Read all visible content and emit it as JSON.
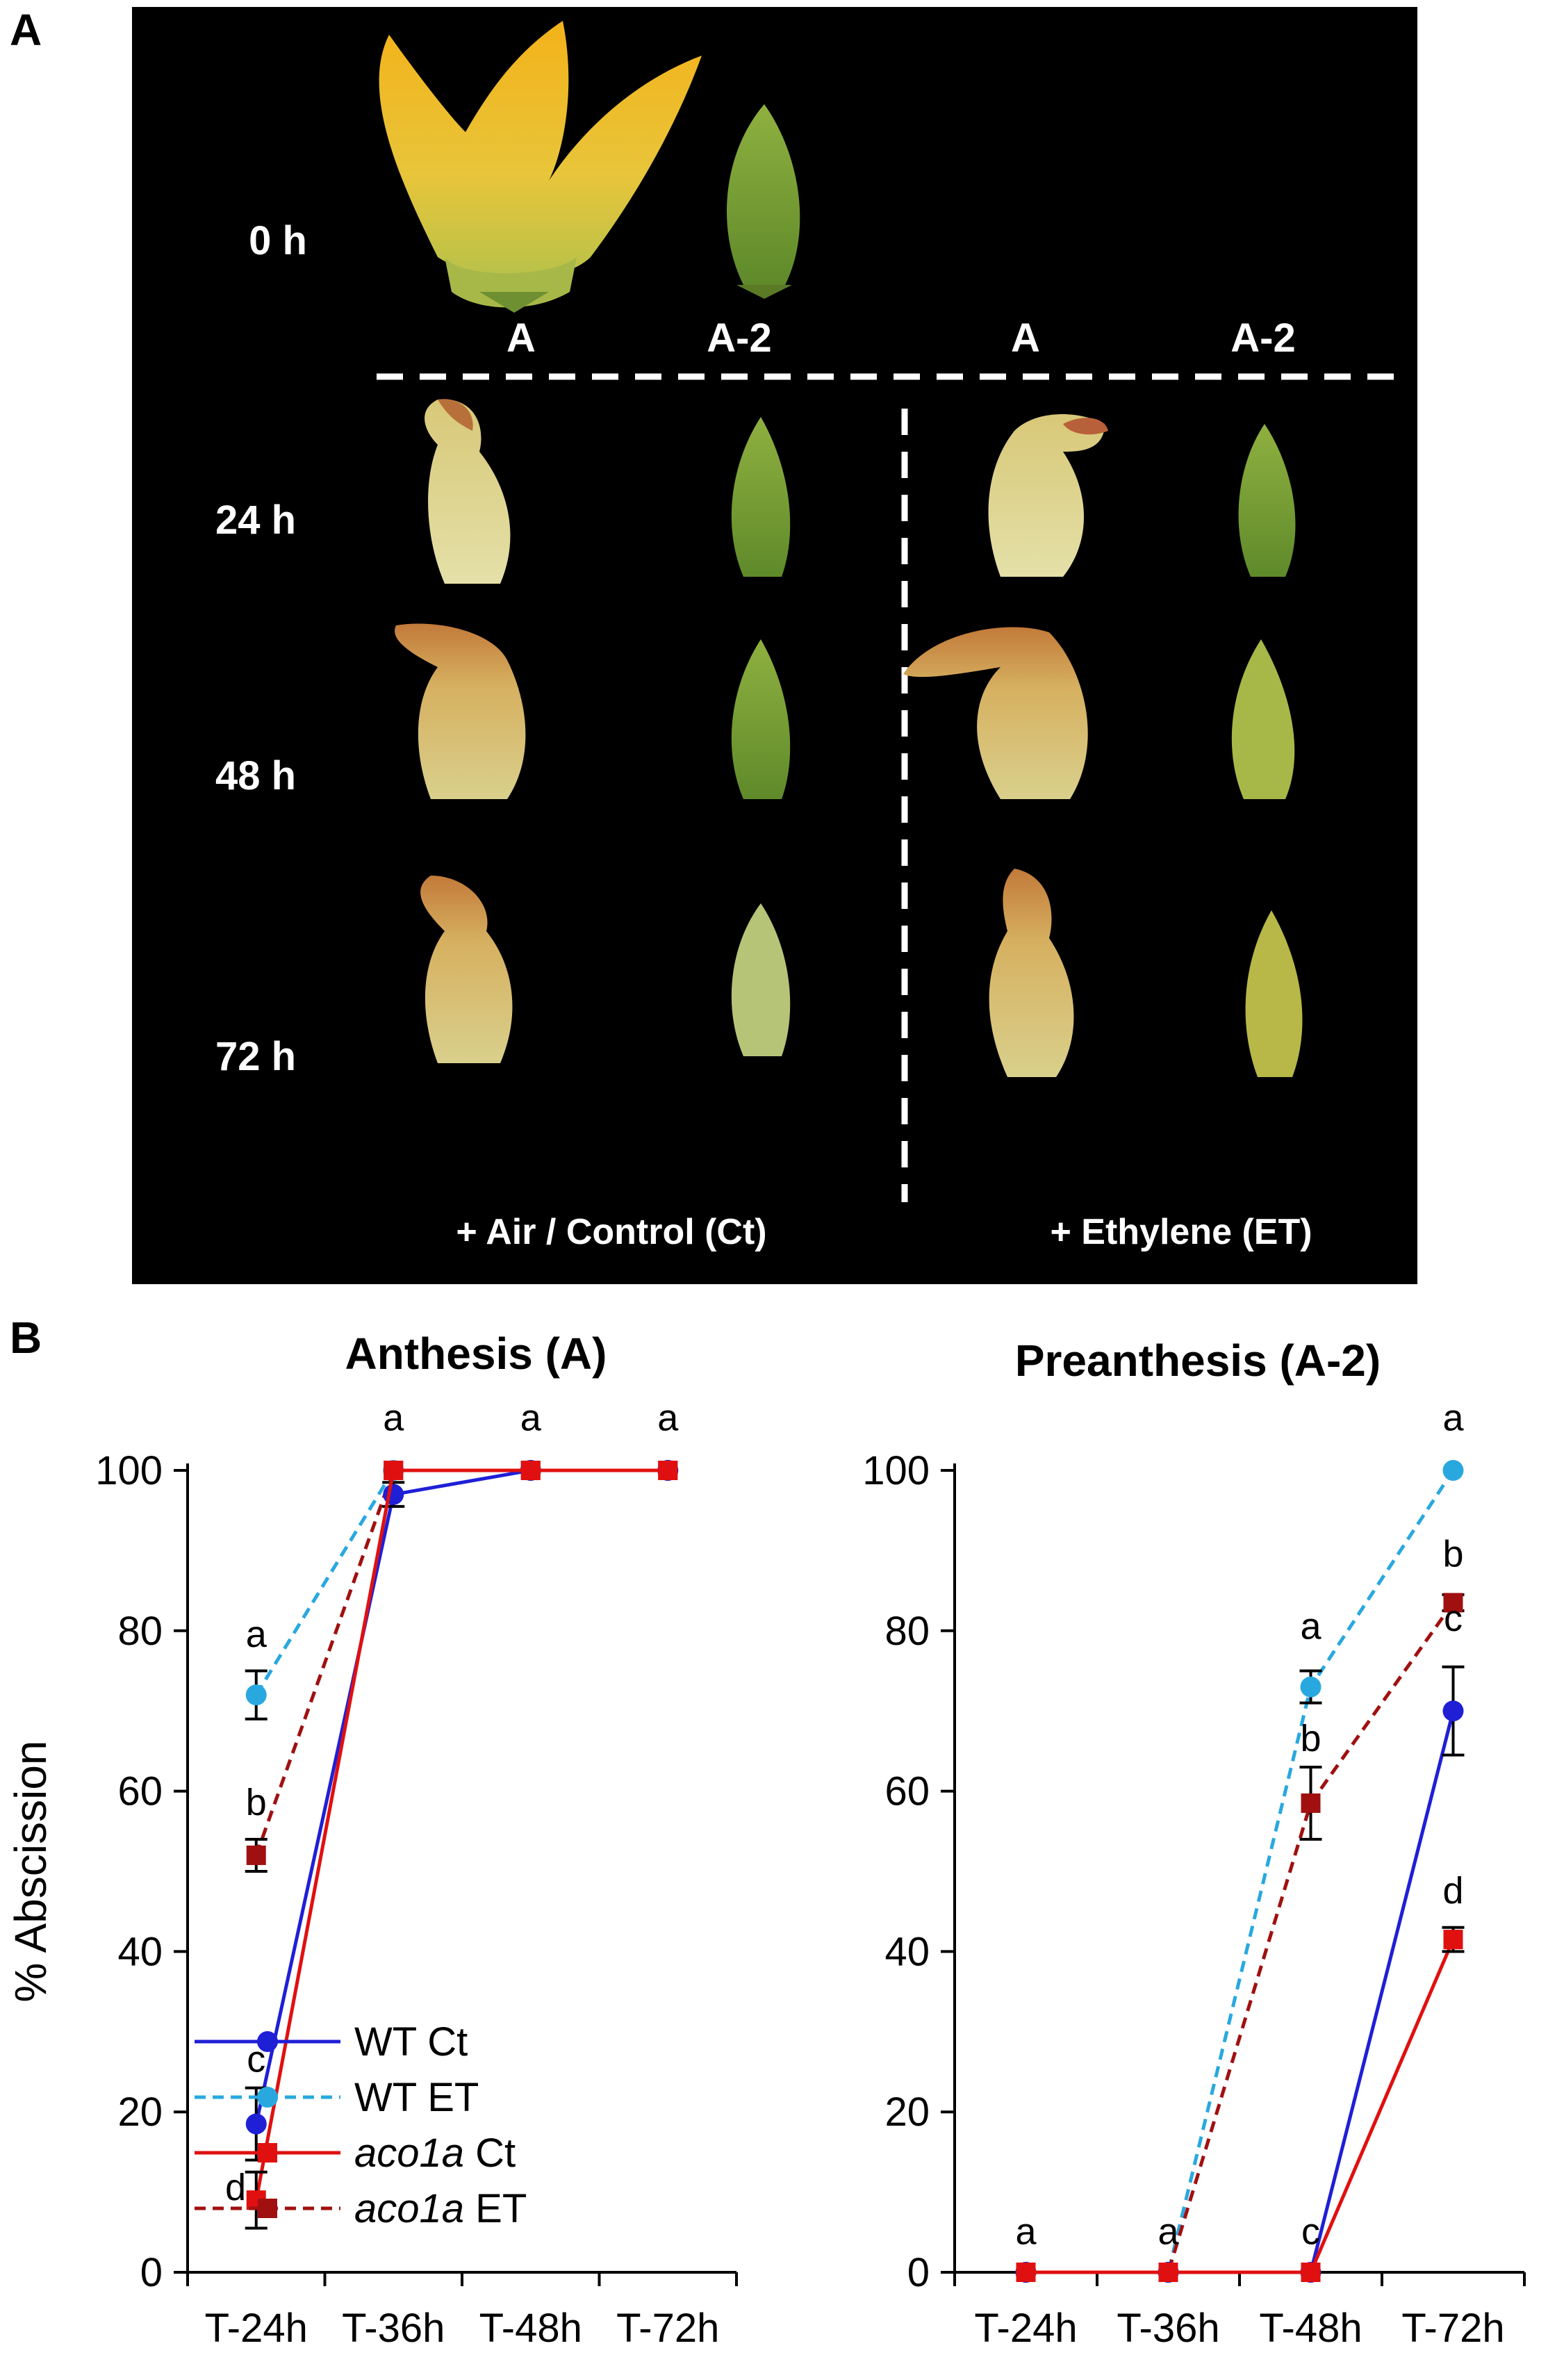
{
  "figure": {
    "panel_a_label": "A",
    "panel_b_label": "B"
  },
  "photo_panel": {
    "row_labels": [
      "0 h",
      "24 h",
      "48 h",
      "72 h"
    ],
    "column_labels_top": [
      "A",
      "A-2"
    ],
    "column_labels_ct": [
      "A",
      "A-2"
    ],
    "column_labels_et": [
      "A",
      "A-2"
    ],
    "treatment_ct": "+ Air / Control (Ct)",
    "treatment_et": "+ Ethylene (ET)"
  },
  "legend": {
    "entries": [
      {
        "name": "WT Ct",
        "italic_part": "",
        "plain_part": "WT Ct",
        "color": "#1f1fd6",
        "dash": false,
        "marker": "circle"
      },
      {
        "name": "WT ET",
        "italic_part": "",
        "plain_part": "WT ET",
        "color": "#29a8e0",
        "dash": true,
        "marker": "circle"
      },
      {
        "name": "aco1a Ct",
        "italic_part": "aco1a",
        "plain_part": " Ct",
        "color": "#e01010",
        "dash": false,
        "marker": "square"
      },
      {
        "name": "aco1a ET",
        "italic_part": "aco1a",
        "plain_part": " ET",
        "color": "#a01010",
        "dash": true,
        "marker": "square"
      }
    ]
  },
  "chart_data": [
    {
      "type": "line",
      "title": "Anthesis (A)",
      "ylabel": "% Abscission",
      "xlabel": "",
      "categories": [
        "T-24h",
        "T-36h",
        "T-48h",
        "T-72h"
      ],
      "ylim": [
        0,
        100
      ],
      "yticks": [
        0,
        20,
        40,
        60,
        80,
        100
      ],
      "series": [
        {
          "name": "WT Ct",
          "values": [
            18.5,
            97,
            100,
            100
          ],
          "errors": [
            4.5,
            1.5,
            0,
            0
          ],
          "color": "#1f1fd6",
          "dash": false,
          "marker": "circle"
        },
        {
          "name": "WT ET",
          "values": [
            72,
            100,
            100,
            100
          ],
          "errors": [
            3,
            0,
            0,
            0
          ],
          "color": "#29a8e0",
          "dash": true,
          "marker": "circle"
        },
        {
          "name": "aco1a Ct",
          "values": [
            9,
            100,
            100,
            100
          ],
          "errors": [
            3.5,
            0,
            0,
            0
          ],
          "color": "#e01010",
          "dash": false,
          "marker": "square"
        },
        {
          "name": "aco1a ET",
          "values": [
            52,
            100,
            100,
            100
          ],
          "errors": [
            2,
            0,
            0,
            0
          ],
          "color": "#a01010",
          "dash": true,
          "marker": "square"
        }
      ],
      "annotations": [
        {
          "text": "a",
          "x": 0,
          "y": 78
        },
        {
          "text": "b",
          "x": 0,
          "y": 57
        },
        {
          "text": "c",
          "x": 0,
          "y": 25
        },
        {
          "text": "d",
          "x": -0.15,
          "y": 9
        },
        {
          "text": "a",
          "x": 1,
          "y": 105
        },
        {
          "text": "a",
          "x": 2,
          "y": 105
        },
        {
          "text": "a",
          "x": 3,
          "y": 105
        }
      ]
    },
    {
      "type": "line",
      "title": "Preanthesis (A-2)",
      "ylabel": "",
      "xlabel": "",
      "categories": [
        "T-24h",
        "T-36h",
        "T-48h",
        "T-72h"
      ],
      "ylim": [
        0,
        100
      ],
      "yticks": [
        0,
        20,
        40,
        60,
        80,
        100
      ],
      "series": [
        {
          "name": "WT Ct",
          "values": [
            0,
            0,
            0,
            70
          ],
          "errors": [
            0,
            0,
            0,
            5.5
          ],
          "color": "#1f1fd6",
          "dash": false,
          "marker": "circle"
        },
        {
          "name": "WT ET",
          "values": [
            0,
            0,
            73,
            100
          ],
          "errors": [
            0,
            0,
            2,
            0
          ],
          "color": "#29a8e0",
          "dash": true,
          "marker": "circle"
        },
        {
          "name": "aco1a Ct",
          "values": [
            0,
            0,
            0,
            41.5
          ],
          "errors": [
            0,
            0,
            0,
            1.5
          ],
          "color": "#e01010",
          "dash": false,
          "marker": "square"
        },
        {
          "name": "aco1a ET",
          "values": [
            0,
            0,
            58.5,
            83.5
          ],
          "errors": [
            0,
            0,
            4.5,
            1
          ],
          "color": "#a01010",
          "dash": true,
          "marker": "square"
        }
      ],
      "annotations": [
        {
          "text": "a",
          "x": 0,
          "y": 3.5
        },
        {
          "text": "a",
          "x": 1,
          "y": 3.5
        },
        {
          "text": "c",
          "x": 2,
          "y": 3.5
        },
        {
          "text": "a",
          "x": 2,
          "y": 79
        },
        {
          "text": "b",
          "x": 2,
          "y": 65
        },
        {
          "text": "a",
          "x": 3,
          "y": 105
        },
        {
          "text": "b",
          "x": 3,
          "y": 88
        },
        {
          "text": "c",
          "x": 3,
          "y": 80
        },
        {
          "text": "d",
          "x": 3,
          "y": 46
        }
      ]
    }
  ]
}
